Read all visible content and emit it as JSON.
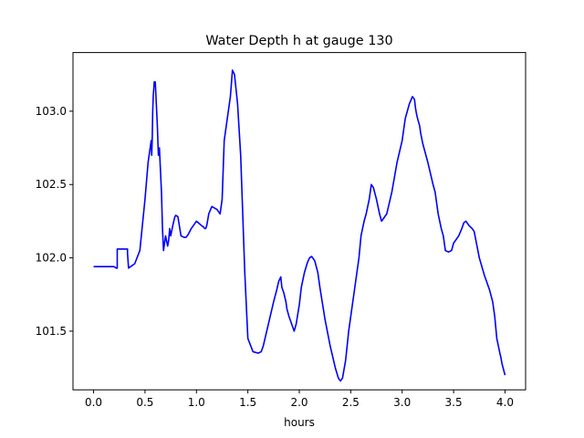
{
  "chart_data": {
    "type": "line",
    "title": "Water Depth h at gauge 130",
    "xlabel": "hours",
    "ylabel": "",
    "xlim": [
      -0.2,
      4.2
    ],
    "ylim": [
      101.1,
      103.4
    ],
    "xticks": [
      0.0,
      0.5,
      1.0,
      1.5,
      2.0,
      2.5,
      3.0,
      3.5,
      4.0
    ],
    "xtick_labels": [
      "0.0",
      "0.5",
      "1.0",
      "1.5",
      "2.0",
      "2.5",
      "3.0",
      "3.5",
      "4.0"
    ],
    "yticks": [
      101.5,
      102.0,
      102.5,
      103.0
    ],
    "ytick_labels": [
      "101.5",
      "102.0",
      "102.5",
      "103.0"
    ],
    "grid": false,
    "series": [
      {
        "color": "#0000ff",
        "x": [
          0.0,
          0.2,
          0.22,
          0.23,
          0.23,
          0.33,
          0.33,
          0.34,
          0.4,
          0.45,
          0.5,
          0.53,
          0.55,
          0.56,
          0.565,
          0.57,
          0.575,
          0.58,
          0.585,
          0.59,
          0.6,
          0.61,
          0.62,
          0.63,
          0.64,
          0.65,
          0.66,
          0.67,
          0.68,
          0.7,
          0.72,
          0.73,
          0.74,
          0.75,
          0.77,
          0.79,
          0.8,
          0.82,
          0.85,
          0.88,
          0.9,
          0.92,
          0.95,
          1.0,
          1.05,
          1.07,
          1.08,
          1.09,
          1.1,
          1.12,
          1.15,
          1.2,
          1.23,
          1.25,
          1.26,
          1.27,
          1.28,
          1.3,
          1.32,
          1.33,
          1.35,
          1.37,
          1.4,
          1.43,
          1.45,
          1.47,
          1.5,
          1.55,
          1.6,
          1.63,
          1.65,
          1.7,
          1.75,
          1.78,
          1.8,
          1.82,
          1.83,
          1.85,
          1.87,
          1.88,
          1.9,
          1.95,
          1.97,
          2.0,
          2.02,
          2.05,
          2.08,
          2.1,
          2.12,
          2.15,
          2.18,
          2.2,
          2.25,
          2.3,
          2.35,
          2.38,
          2.4,
          2.42,
          2.45,
          2.48,
          2.5,
          2.55,
          2.58,
          2.6,
          2.63,
          2.65,
          2.68,
          2.7,
          2.72,
          2.75,
          2.78,
          2.8,
          2.85,
          2.9,
          2.95,
          3.0,
          3.02,
          3.03,
          3.05,
          3.07,
          3.1,
          3.12,
          3.13,
          3.14,
          3.15,
          3.17,
          3.18,
          3.2,
          3.25,
          3.3,
          3.32,
          3.33,
          3.35,
          3.38,
          3.4,
          3.42,
          3.45,
          3.48,
          3.5,
          3.55,
          3.58,
          3.6,
          3.62,
          3.63,
          3.65,
          3.68,
          3.7,
          3.75,
          3.8,
          3.85,
          3.88,
          3.9,
          3.92,
          3.95,
          3.96,
          3.97,
          4.0
        ],
        "y": [
          101.94,
          101.94,
          101.93,
          101.93,
          102.06,
          102.06,
          102.03,
          101.93,
          101.96,
          102.05,
          102.4,
          102.65,
          102.75,
          102.8,
          102.7,
          102.8,
          103.0,
          103.1,
          103.15,
          103.2,
          103.2,
          103.05,
          102.9,
          102.7,
          102.75,
          102.6,
          102.45,
          102.2,
          102.05,
          102.15,
          102.08,
          102.12,
          102.2,
          102.15,
          102.22,
          102.28,
          102.29,
          102.28,
          102.15,
          102.14,
          102.14,
          102.16,
          102.2,
          102.25,
          102.22,
          102.21,
          102.2,
          102.2,
          102.22,
          102.3,
          102.35,
          102.33,
          102.3,
          102.4,
          102.6,
          102.8,
          102.85,
          102.95,
          103.05,
          103.1,
          103.28,
          103.25,
          103.05,
          102.7,
          102.3,
          101.9,
          101.45,
          101.36,
          101.35,
          101.36,
          101.4,
          101.55,
          101.7,
          101.78,
          101.84,
          101.87,
          101.8,
          101.76,
          101.7,
          101.65,
          101.6,
          101.5,
          101.55,
          101.68,
          101.8,
          101.9,
          101.97,
          102.0,
          102.01,
          101.98,
          101.9,
          101.8,
          101.58,
          101.4,
          101.25,
          101.18,
          101.16,
          101.18,
          101.3,
          101.5,
          101.6,
          101.85,
          102.0,
          102.15,
          102.25,
          102.3,
          102.4,
          102.5,
          102.48,
          102.4,
          102.3,
          102.25,
          102.3,
          102.45,
          102.65,
          102.8,
          102.9,
          102.95,
          103.0,
          103.05,
          103.1,
          103.08,
          103.02,
          102.98,
          102.95,
          102.9,
          102.85,
          102.78,
          102.65,
          102.5,
          102.45,
          102.4,
          102.3,
          102.2,
          102.15,
          102.05,
          102.04,
          102.05,
          102.1,
          102.15,
          102.2,
          102.24,
          102.25,
          102.24,
          102.22,
          102.2,
          102.18,
          102.0,
          101.88,
          101.78,
          101.7,
          101.6,
          101.45,
          101.35,
          101.32,
          101.28,
          101.2
        ]
      }
    ]
  }
}
